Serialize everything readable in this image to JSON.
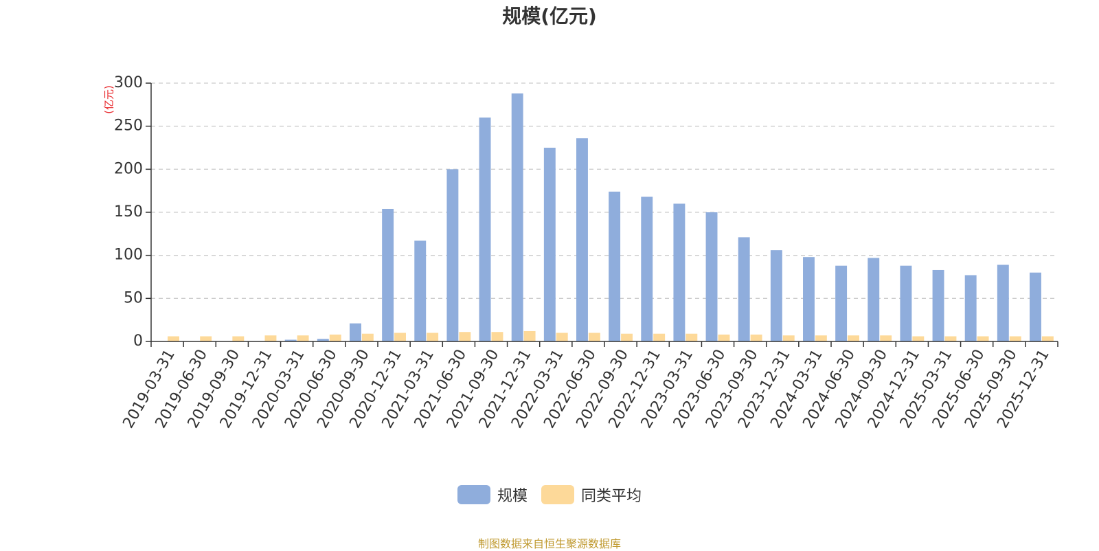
{
  "chart_data": {
    "type": "bar",
    "title": "规模(亿元)",
    "ylabel": "(亿元)",
    "ylim": [
      0,
      300
    ],
    "yticks": [
      0,
      50,
      100,
      150,
      200,
      250,
      300
    ],
    "grid": true,
    "legend_position": "bottom",
    "categories": [
      "2019-03-31",
      "2019-06-30",
      "2019-09-30",
      "2019-12-31",
      "2020-03-31",
      "2020-06-30",
      "2020-09-30",
      "2020-12-31",
      "2021-03-31",
      "2021-06-30",
      "2021-09-30",
      "2021-12-31",
      "2022-03-31",
      "2022-06-30",
      "2022-09-30",
      "2022-12-31",
      "2023-03-31",
      "2023-06-30",
      "2023-09-30",
      "2023-12-31",
      "2024-03-31",
      "2024-06-30",
      "2024-09-30",
      "2024-12-31",
      "2025-03-31",
      "2025-06-30",
      "2025-09-30",
      "2025-12-31"
    ],
    "series": [
      {
        "name": "规模",
        "color": "#8faddc",
        "values": [
          0,
          0,
          0,
          0,
          2,
          3,
          21,
          154,
          117,
          200,
          260,
          288,
          225,
          236,
          174,
          168,
          160,
          150,
          121,
          106,
          98,
          88,
          97,
          88,
          83,
          77,
          89,
          80
        ]
      },
      {
        "name": "同类平均",
        "color": "#fdd999",
        "values": [
          6,
          6,
          6,
          7,
          7,
          8,
          9,
          10,
          10,
          11,
          11,
          12,
          10,
          10,
          9,
          9,
          9,
          8,
          8,
          7,
          7,
          7,
          7,
          6,
          6,
          6,
          6,
          6
        ]
      }
    ]
  },
  "source_note": "制图数据来自恒生聚源数据库"
}
